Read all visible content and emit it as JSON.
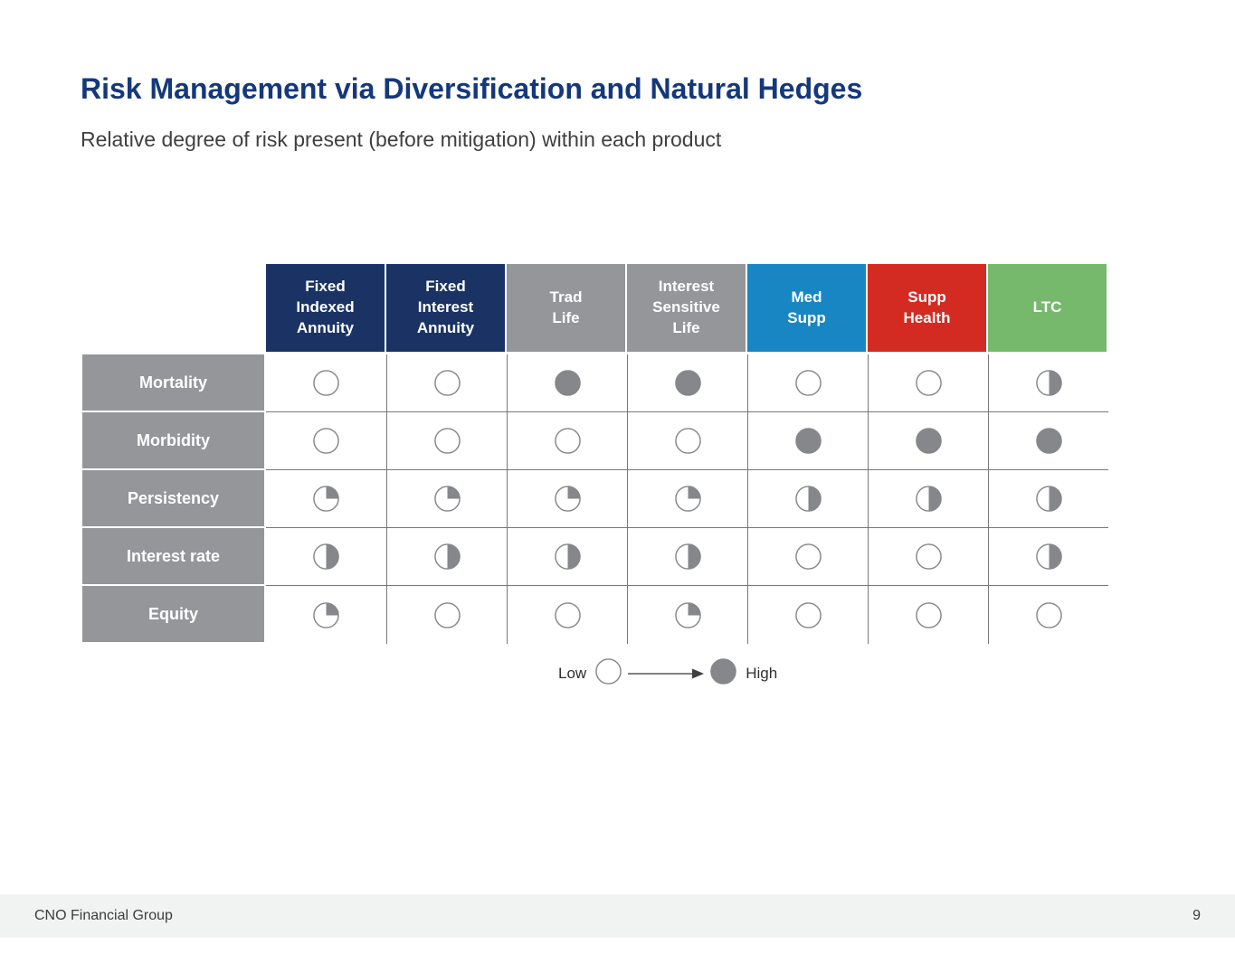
{
  "slide": {
    "title": "Risk Management via Diversification and Natural Hedges",
    "subtitle": "Relative degree of risk present (before mitigation) within each product"
  },
  "colors": {
    "title_blue": "#14387b",
    "navy_header": "#1a3264",
    "gray_header": "#949699",
    "blue_header": "#1886c3",
    "red_header": "#d32b21",
    "green_header": "#76b96c",
    "ball_fill": "#85878a",
    "grid_line": "#77787b",
    "footer_bg": "#f1f2f2"
  },
  "table": {
    "columns": [
      {
        "label": "Fixed\nIndexed\nAnnuity",
        "color": "#1a3264"
      },
      {
        "label": "Fixed\nInterest\nAnnuity",
        "color": "#1a3264"
      },
      {
        "label": "Trad\nLife",
        "color": "#949699"
      },
      {
        "label": "Interest\nSensitive\nLife",
        "color": "#949699"
      },
      {
        "label": "Med\nSupp",
        "color": "#1886c3"
      },
      {
        "label": "Supp\nHealth",
        "color": "#d32b21"
      },
      {
        "label": "LTC",
        "color": "#76b96c"
      }
    ],
    "rows": [
      {
        "label": "Mortality",
        "cells": [
          "empty",
          "empty",
          "full",
          "full",
          "empty",
          "empty",
          "half"
        ]
      },
      {
        "label": "Morbidity",
        "cells": [
          "empty",
          "empty",
          "empty",
          "empty",
          "full",
          "full",
          "full"
        ]
      },
      {
        "label": "Persistency",
        "cells": [
          "quarter",
          "quarter",
          "quarter",
          "quarter",
          "half",
          "half",
          "half"
        ]
      },
      {
        "label": "Interest rate",
        "cells": [
          "half",
          "half",
          "half",
          "half",
          "empty",
          "empty",
          "half"
        ]
      },
      {
        "label": "Equity",
        "cells": [
          "quarter",
          "empty",
          "empty",
          "quarter",
          "empty",
          "empty",
          "empty"
        ]
      }
    ],
    "cell_scale": {
      "empty": 0,
      "quarter": 0.25,
      "half": 0.5,
      "full": 1
    }
  },
  "legend": {
    "low_label": "Low",
    "high_label": "High"
  },
  "footer": {
    "company": "CNO Financial Group",
    "page": "9"
  }
}
